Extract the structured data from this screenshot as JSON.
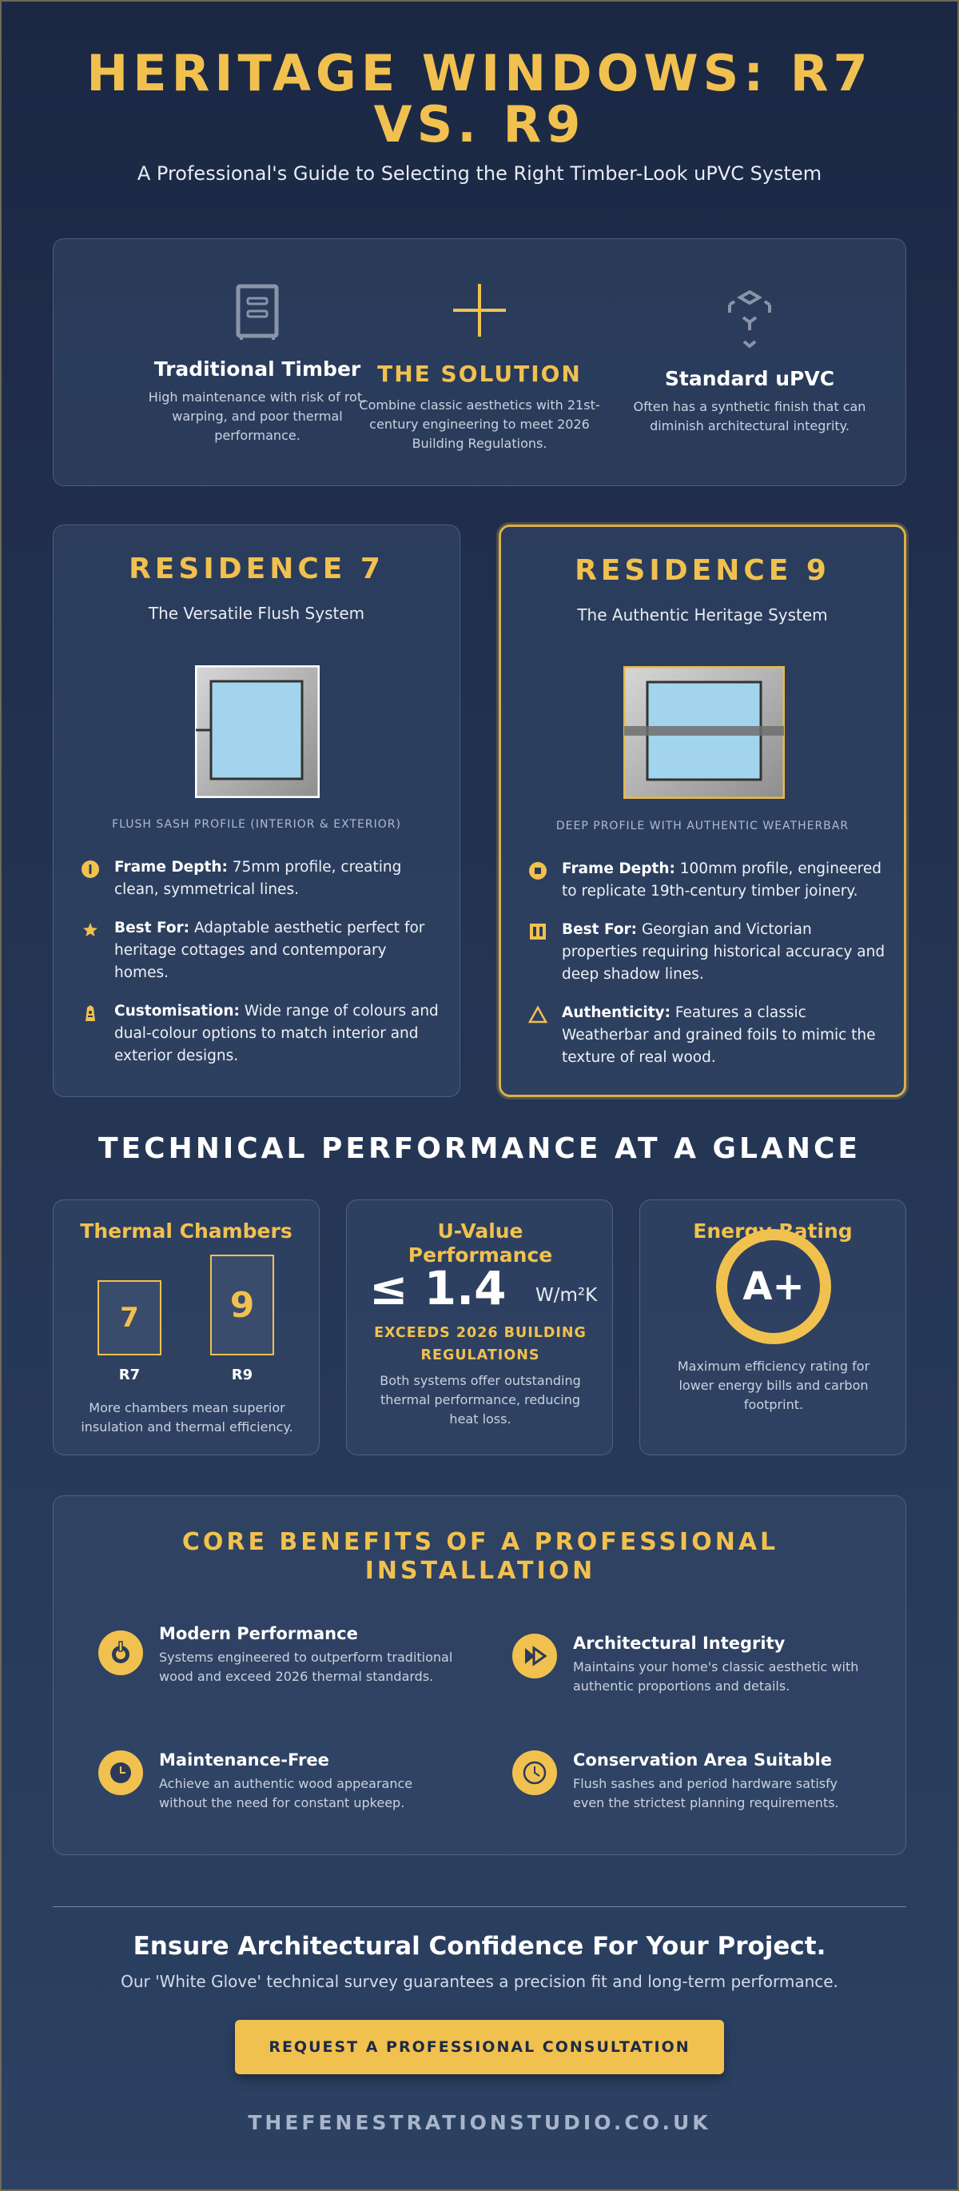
{
  "header": {
    "title": "HERITAGE WINDOWS: R7 VS. R9",
    "subtitle": "A Professional's Guide to Selecting the Right Timber-Look uPVC System"
  },
  "intro": {
    "columns": [
      {
        "icon": "cabinet-icon",
        "title": "Traditional Timber",
        "text": "High maintenance with risk of rot, warping, and poor thermal performance."
      },
      {
        "icon": "plus-icon",
        "title": "THE SOLUTION",
        "text": "Combine classic aesthetics with 21st-century engineering to meet 2026 Building Regulations."
      },
      {
        "icon": "network-icon",
        "title": "Standard uPVC",
        "text": "Often has a synthetic finish that can diminish architectural integrity."
      }
    ]
  },
  "residences": [
    {
      "title": "RESIDENCE 7",
      "tagline": "The Versatile Flush System",
      "caption": "FLUSH SASH PROFILE (INTERIOR & EXTERIOR)",
      "features": [
        {
          "icon": "info-circle-icon",
          "label": "Frame Depth:",
          "text": " 75mm profile, creating clean, symmetrical lines."
        },
        {
          "icon": "star-icon",
          "label": "Best For:",
          "text": " Adaptable aesthetic perfect for heritage cottages and contemporary homes."
        },
        {
          "icon": "tag-icon",
          "label": "Customisation:",
          "text": " Wide range of colours and dual-colour options to match interior and exterior designs."
        }
      ]
    },
    {
      "title": "RESIDENCE 9",
      "tagline": "The Authentic Heritage System",
      "caption": "DEEP PROFILE WITH AUTHENTIC WEATHERBAR",
      "features": [
        {
          "icon": "square-circle-icon",
          "label": "Frame Depth:",
          "text": " 100mm profile, engineered to replicate 19th-century timber joinery."
        },
        {
          "icon": "columns-icon",
          "label": "Best For:",
          "text": " Georgian and Victorian properties requiring historical accuracy and deep shadow lines."
        },
        {
          "icon": "triangle-icon",
          "label": "Authenticity:",
          "text": " Features a classic Weatherbar and grained foils to mimic the texture of real wood."
        }
      ]
    }
  ],
  "technical": {
    "title": "TECHNICAL PERFORMANCE AT A GLANCE",
    "thermal": {
      "title": "Thermal Chambers",
      "r7_value": "7",
      "r7_label": "R7",
      "r9_value": "9",
      "r9_label": "R9",
      "note": "More chambers mean superior insulation and thermal efficiency."
    },
    "uvalue": {
      "title": "U-Value Performance",
      "value": "≤ 1.4",
      "unit": "W/m²K",
      "highlight": "EXCEEDS 2026 BUILDING REGULATIONS",
      "note": "Both systems offer outstanding thermal performance, reducing heat loss."
    },
    "energy": {
      "title": "Energy Rating",
      "rating": "A+",
      "note": "Maximum efficiency rating for lower energy bills and carbon footprint."
    }
  },
  "benefits": {
    "title": "CORE BENEFITS OF A PROFESSIONAL INSTALLATION",
    "items": [
      {
        "icon": "power-icon",
        "title": "Modern Performance",
        "text": "Systems engineered to outperform traditional wood and exceed 2026 thermal standards."
      },
      {
        "icon": "fast-forward-icon",
        "title": "Architectural Integrity",
        "text": "Maintains your home's classic aesthetic with authentic proportions and details."
      },
      {
        "icon": "clock-icon",
        "title": "Maintenance-Free",
        "text": "Achieve an authentic wood appearance without the need for constant upkeep."
      },
      {
        "icon": "clock-outline-icon",
        "title": "Conservation Area Suitable",
        "text": "Flush sashes and period hardware satisfy even the strictest planning requirements."
      }
    ]
  },
  "cta": {
    "title": "Ensure Architectural Confidence For Your Project.",
    "subtitle": "Our 'White Glove' technical survey guarantees a precision fit and long-term performance.",
    "button": "REQUEST A PROFESSIONAL CONSULTATION",
    "url": "THEFENESTRATIONSTUDIO.CO.UK"
  },
  "colors": {
    "accent": "#f1c14f",
    "background_top": "#1b2844",
    "background_bottom": "#2c4163",
    "glass": "#a3d4ed"
  }
}
